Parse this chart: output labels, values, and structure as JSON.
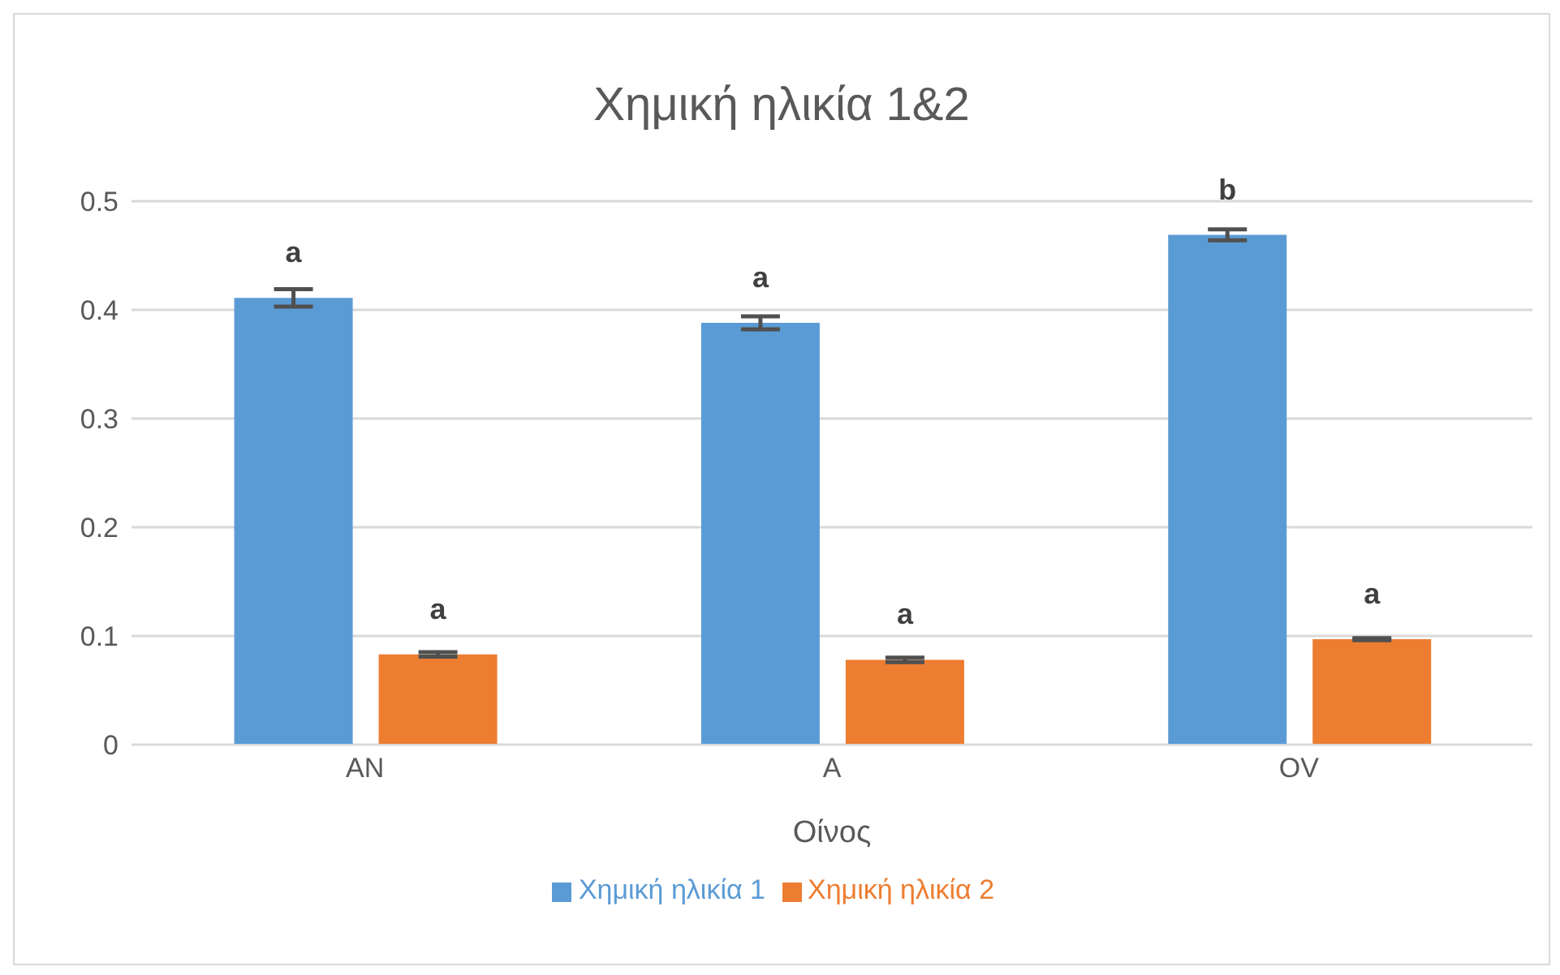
{
  "chart_data": {
    "type": "bar",
    "title": "Χημική ηλικία 1&2",
    "xlabel": "Οίνος",
    "categories": [
      "AN",
      "A",
      "OV"
    ],
    "series": [
      {
        "name": "Χημική ηλικία 1",
        "color": "#5b9bd5",
        "values": [
          0.411,
          0.388,
          0.469
        ],
        "errors": [
          0.008,
          0.006,
          0.005
        ],
        "value_labels": [
          "a",
          "a",
          "b"
        ]
      },
      {
        "name": "Χημική ηλικία 2",
        "color": "#ed7d31",
        "values": [
          0.083,
          0.078,
          0.097
        ],
        "errors": [
          0.002,
          0.002,
          0.001
        ],
        "value_labels": [
          "a",
          "a",
          "a"
        ]
      }
    ],
    "ylim": [
      0,
      0.5
    ],
    "yticks": [
      0,
      0.1,
      0.2,
      0.3,
      0.4,
      0.5
    ],
    "grid": "y",
    "legend": "bottom"
  }
}
